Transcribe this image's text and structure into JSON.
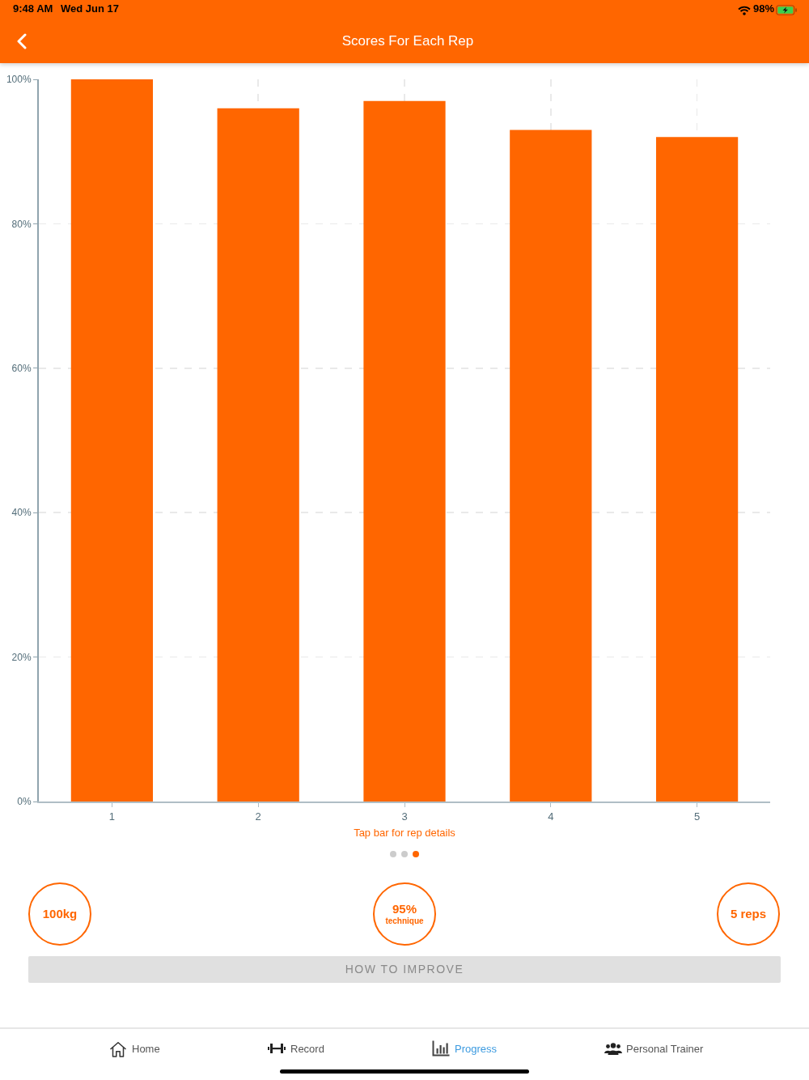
{
  "chart_data": {
    "type": "bar",
    "title": "Scores For Each Rep",
    "categories": [
      "1",
      "2",
      "3",
      "4",
      "5"
    ],
    "values": [
      100,
      96,
      97,
      93,
      92
    ],
    "color": "#ff6600",
    "ylim": [
      0,
      100
    ],
    "yticks": [
      {
        "value": 0,
        "label": "0%"
      },
      {
        "value": 20,
        "label": "20%"
      },
      {
        "value": 40,
        "label": "40%"
      },
      {
        "value": 60,
        "label": "60%"
      },
      {
        "value": 80,
        "label": "80%"
      },
      {
        "value": 100,
        "label": "100%"
      }
    ],
    "grid": true,
    "annotations": [
      "9:48 AM",
      "Wed Jun 17",
      "98%",
      "Tap bar for rep details",
      "100kg",
      "95%",
      "technique",
      "5 reps",
      "HOW TO IMPROVE",
      "Home",
      "Record",
      "Progress",
      "Personal Trainer"
    ]
  }
}
